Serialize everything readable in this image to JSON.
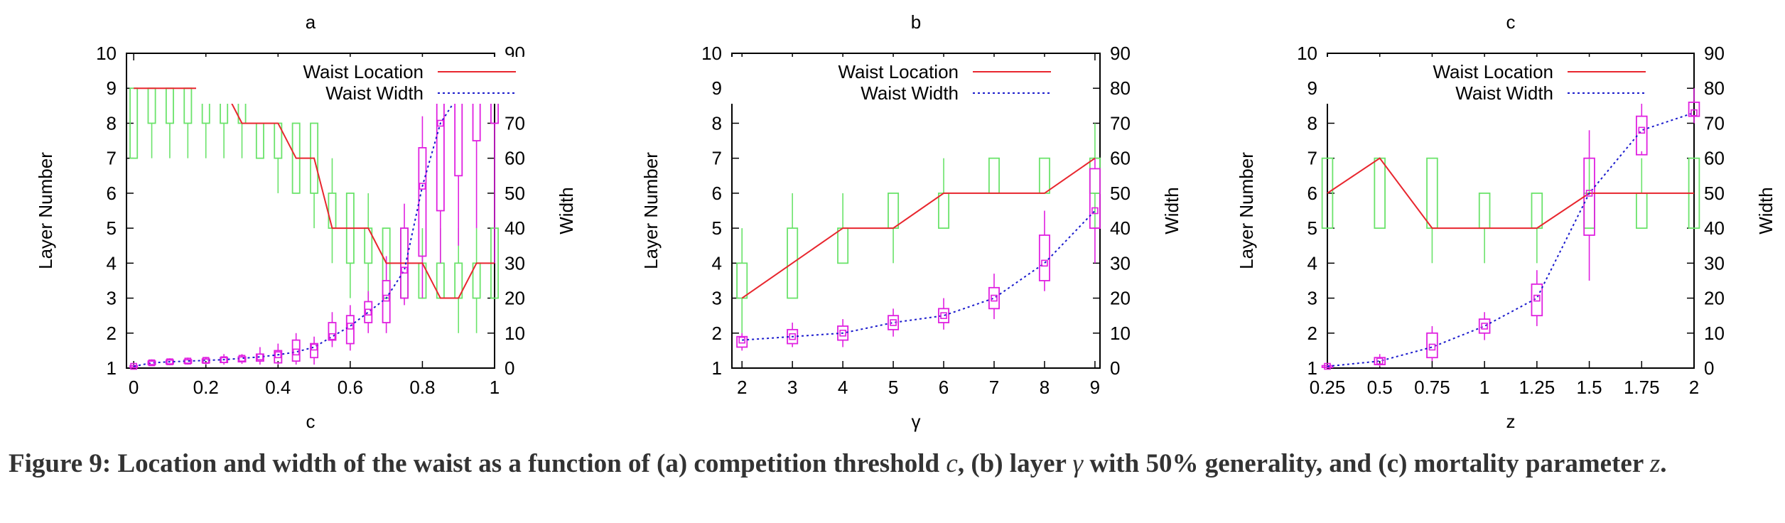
{
  "caption": {
    "label": "Figure 9:",
    "text_a": "Location and width of the waist as a function of (a) competition threshold ",
    "var_a": "c",
    "text_b": ", (b) layer ",
    "var_b": "γ",
    "text_c": " with 50% generality, and (c) mortality parameter ",
    "var_c": "z",
    "text_d": "."
  },
  "colors": {
    "location": "#e8262e",
    "width": "#1a1acd",
    "location_box": "#6be36b",
    "width_box": "#e020e0"
  },
  "chart_data": [
    {
      "type": "line",
      "title": "a",
      "xlabel": "c",
      "ylabel": "Layer Number",
      "y2label": "Width",
      "xlim": [
        -0.02,
        1.0
      ],
      "ylim": [
        1,
        10
      ],
      "y2lim": [
        0,
        90
      ],
      "x_ticks": [
        "0",
        "0.2",
        "0.4",
        "0.6",
        "0.8",
        "1"
      ],
      "x_tick_values": [
        0,
        0.2,
        0.4,
        0.6,
        0.8,
        1.0
      ],
      "y_ticks": [
        "1",
        "2",
        "3",
        "4",
        "5",
        "6",
        "7",
        "8",
        "9",
        "10"
      ],
      "y2_ticks": [
        "0",
        "10",
        "20",
        "30",
        "40",
        "50",
        "60",
        "70",
        "80",
        "90"
      ],
      "legend": {
        "placement": "top-right",
        "location": "Waist Location",
        "width": "Waist Width"
      },
      "box_width": 0.02,
      "series": [
        {
          "name": "Waist Location",
          "x": [
            0,
            0.05,
            0.1,
            0.15,
            0.2,
            0.25,
            0.3,
            0.35,
            0.4,
            0.45,
            0.5,
            0.55,
            0.6,
            0.65,
            0.7,
            0.75,
            0.8,
            0.85,
            0.9,
            0.95,
            1.0
          ],
          "values": [
            9,
            9,
            9,
            9,
            9,
            9,
            8,
            8,
            8,
            7,
            7,
            5,
            5,
            5,
            4,
            4,
            4,
            3,
            3,
            4,
            4
          ],
          "boxes": [
            [
              7,
              7,
              9,
              9,
              9
            ],
            [
              7,
              8,
              9,
              9,
              9
            ],
            [
              7,
              8,
              9,
              9,
              9
            ],
            [
              7,
              8,
              9,
              9,
              9
            ],
            [
              7,
              8,
              9,
              9,
              9
            ],
            [
              7,
              8,
              9,
              9,
              9
            ],
            [
              7,
              8,
              8,
              9,
              9
            ],
            [
              7,
              7,
              8,
              8,
              8
            ],
            [
              6,
              7,
              8,
              8,
              8
            ],
            [
              6,
              6,
              7,
              8,
              8
            ],
            [
              5,
              6,
              7,
              8,
              8
            ],
            [
              4,
              5,
              5,
              6,
              7
            ],
            [
              3,
              4,
              5,
              6,
              6
            ],
            [
              3,
              4,
              5,
              5,
              6
            ],
            [
              3,
              3,
              4,
              5,
              5
            ],
            [
              3,
              3,
              4,
              5,
              5
            ],
            [
              3,
              3,
              4,
              4,
              5
            ],
            [
              3,
              3,
              4,
              4,
              5
            ],
            [
              2,
              3,
              3,
              4,
              5
            ],
            [
              2,
              3,
              4,
              4,
              5
            ],
            [
              3,
              3,
              4,
              5,
              5
            ]
          ]
        },
        {
          "name": "Waist Width",
          "x": [
            0,
            0.05,
            0.1,
            0.15,
            0.2,
            0.25,
            0.3,
            0.35,
            0.4,
            0.45,
            0.5,
            0.55,
            0.6,
            0.65,
            0.7,
            0.75,
            0.8,
            0.85,
            0.9,
            0.95,
            1.0
          ],
          "values": [
            0.5,
            1.5,
            1.8,
            2,
            2.2,
            2.4,
            2.8,
            3.2,
            3.8,
            4.6,
            6,
            9,
            12,
            16,
            20,
            28,
            52,
            70,
            78,
            80,
            80
          ],
          "boxes": [
            [
              0,
              0.2,
              0.5,
              0.7,
              1
            ],
            [
              0.6,
              1,
              1.5,
              2,
              2.5
            ],
            [
              0.8,
              1.2,
              1.8,
              2.3,
              2.8
            ],
            [
              1,
              1.4,
              2,
              2.4,
              3
            ],
            [
              1,
              1.5,
              2.2,
              2.6,
              3.2
            ],
            [
              1,
              1.6,
              2.4,
              3,
              4
            ],
            [
              1.2,
              1.8,
              2.6,
              3.2,
              4
            ],
            [
              1,
              2,
              3,
              4,
              6
            ],
            [
              1,
              1.5,
              3.5,
              5,
              7
            ],
            [
              1,
              2,
              4,
              8,
              10
            ],
            [
              1,
              3,
              5,
              7,
              9
            ],
            [
              6,
              8,
              10,
              13,
              16
            ],
            [
              5,
              7,
              11,
              15,
              18
            ],
            [
              10,
              13,
              16,
              19,
              22
            ],
            [
              10,
              13,
              20,
              25,
              32
            ],
            [
              18,
              20,
              32,
              40,
              47
            ],
            [
              20,
              32,
              47,
              63,
              72
            ],
            [
              30,
              45,
              68,
              77,
              82
            ],
            [
              35,
              55,
              72,
              80,
              86
            ],
            [
              40,
              65,
              75,
              85,
              88
            ],
            [
              30,
              70,
              80,
              85,
              86
            ]
          ]
        }
      ]
    },
    {
      "type": "line",
      "title": "b",
      "xlabel": "γ",
      "ylabel": "Layer Number",
      "y2label": "Width",
      "xlim": [
        1.8,
        9.1
      ],
      "ylim": [
        1,
        10
      ],
      "y2lim": [
        0,
        90
      ],
      "x_ticks": [
        "2",
        "3",
        "4",
        "5",
        "6",
        "7",
        "8",
        "9"
      ],
      "x_tick_values": [
        2,
        3,
        4,
        5,
        6,
        7,
        8,
        9
      ],
      "y_ticks": [
        "1",
        "2",
        "3",
        "4",
        "5",
        "6",
        "7",
        "8",
        "9",
        "10"
      ],
      "y2_ticks": [
        "0",
        "10",
        "20",
        "30",
        "40",
        "50",
        "60",
        "70",
        "80",
        "90"
      ],
      "legend": {
        "placement": "top-center",
        "location": "Waist Location",
        "width": "Waist Width"
      },
      "box_width": 0.2,
      "series": [
        {
          "name": "Waist Location",
          "x": [
            2,
            3,
            4,
            5,
            6,
            7,
            8,
            9
          ],
          "values": [
            3,
            4,
            5,
            5,
            6,
            6,
            6,
            7
          ],
          "boxes": [
            [
              2,
              3,
              3,
              4,
              5
            ],
            [
              3,
              3,
              4,
              5,
              6
            ],
            [
              4,
              4,
              5,
              5,
              6
            ],
            [
              4,
              5,
              5,
              6,
              6
            ],
            [
              5,
              5,
              6,
              6,
              7
            ],
            [
              6,
              6,
              6,
              7,
              7
            ],
            [
              6,
              6,
              6,
              7,
              7
            ],
            [
              5,
              6,
              7,
              7,
              8
            ]
          ]
        },
        {
          "name": "Waist Width",
          "x": [
            2,
            3,
            4,
            5,
            6,
            7,
            8,
            9
          ],
          "values": [
            8,
            9,
            10,
            13,
            15,
            20,
            30,
            45
          ],
          "boxes": [
            [
              5,
              6,
              7,
              9,
              10
            ],
            [
              6,
              7,
              9,
              11,
              13
            ],
            [
              6,
              8,
              10,
              12,
              14
            ],
            [
              9,
              11,
              13,
              15,
              17
            ],
            [
              11,
              13,
              15,
              17,
              20
            ],
            [
              14,
              17,
              20,
              23,
              27
            ],
            [
              22,
              25,
              30,
              38,
              45
            ],
            [
              30,
              40,
              45,
              57,
              60
            ]
          ]
        }
      ]
    },
    {
      "type": "line",
      "title": "c",
      "xlabel": "z",
      "ylabel": "Layer Number",
      "y2label": "Width",
      "xlim": [
        0.25,
        2.0
      ],
      "ylim": [
        1,
        10
      ],
      "y2lim": [
        0,
        90
      ],
      "x_ticks": [
        "0.25",
        "0.5",
        "0.75",
        "1",
        "1.25",
        "1.5",
        "1.75",
        "2"
      ],
      "x_tick_values": [
        0.25,
        0.5,
        0.75,
        1,
        1.25,
        1.5,
        1.75,
        2
      ],
      "y_ticks": [
        "1",
        "2",
        "3",
        "4",
        "5",
        "6",
        "7",
        "8",
        "9",
        "10"
      ],
      "y2_ticks": [
        "0",
        "10",
        "20",
        "30",
        "40",
        "50",
        "60",
        "70",
        "80",
        "90"
      ],
      "legend": {
        "placement": "top-center",
        "location": "Waist Location",
        "width": "Waist Width"
      },
      "box_width": 0.05,
      "series": [
        {
          "name": "Waist Location",
          "x": [
            0.25,
            0.5,
            0.75,
            1,
            1.25,
            1.5,
            1.75,
            2
          ],
          "values": [
            6,
            7,
            5,
            5,
            5,
            6,
            6,
            6
          ],
          "boxes": [
            [
              5,
              5,
              6,
              7,
              7
            ],
            [
              5,
              5,
              7,
              7,
              7
            ],
            [
              4,
              5,
              5,
              7,
              7
            ],
            [
              4,
              5,
              5,
              6,
              6
            ],
            [
              4,
              5,
              5,
              6,
              6
            ],
            [
              5,
              5,
              6,
              6,
              7
            ],
            [
              5,
              5,
              6,
              6,
              7
            ],
            [
              5,
              5,
              6,
              7,
              7
            ]
          ]
        },
        {
          "name": "Waist Width",
          "x": [
            0.25,
            0.5,
            0.75,
            1,
            1.25,
            1.5,
            1.75,
            2
          ],
          "values": [
            0.5,
            2,
            6,
            12,
            20,
            50,
            68,
            73
          ],
          "boxes": [
            [
              0,
              0.2,
              0.5,
              0.7,
              1
            ],
            [
              0.5,
              1,
              2,
              3,
              4
            ],
            [
              2,
              3,
              7,
              10,
              12
            ],
            [
              8,
              10,
              12,
              14,
              16
            ],
            [
              12,
              15,
              20,
              24,
              28
            ],
            [
              25,
              38,
              48,
              60,
              68
            ],
            [
              62,
              61,
              67,
              72,
              77
            ],
            [
              70,
              72,
              73,
              76,
              80
            ]
          ]
        }
      ]
    }
  ]
}
